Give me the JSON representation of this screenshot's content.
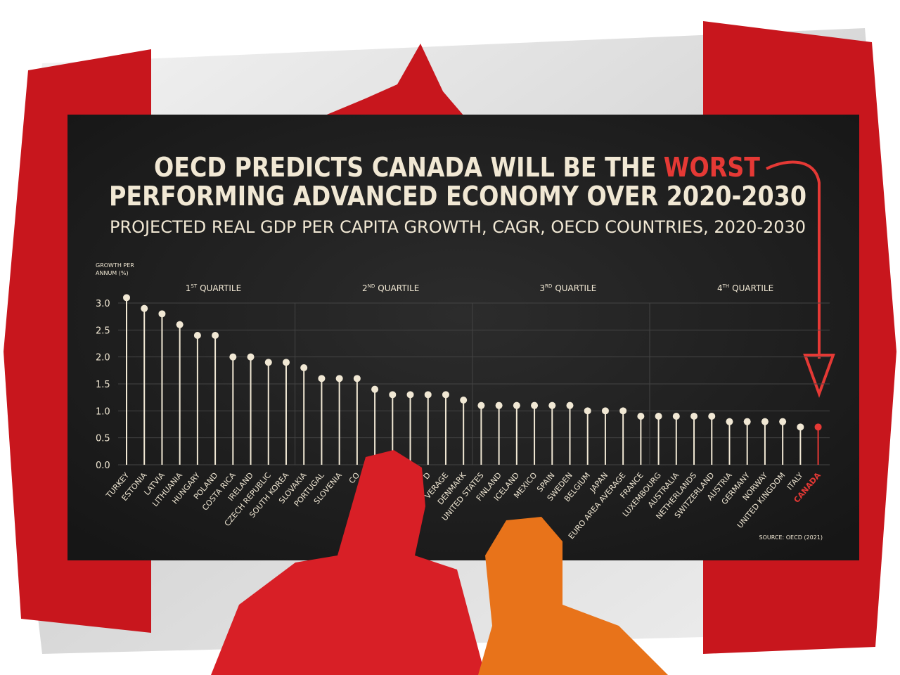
{
  "chart_data": {
    "type": "lollipop",
    "title": [
      "OECD PREDICTS CANADA WILL BE THE",
      "WORST",
      "PERFORMING ADVANCED ECONOMY OVER 2020-2030"
    ],
    "subtitle": "PROJECTED REAL GDP PER CAPITA GROWTH, CAGR, OECD COUNTRIES, 2020-2030",
    "y_label": [
      "GROWTH PER",
      "ANNUM (%)"
    ],
    "source": "SOURCE: OECD (2021)",
    "quartiles": [
      {
        "number": "1",
        "suffix": "ST",
        "text": "QUARTILE"
      },
      {
        "number": "2",
        "suffix": "ND",
        "text": "QUARTILE"
      },
      {
        "number": "3",
        "suffix": "RD",
        "text": "QUARTILE"
      },
      {
        "number": "4",
        "suffix": "TH",
        "text": "QUARTILE"
      }
    ],
    "categories": [
      "TURKEY",
      "ESTONIA",
      "LATVIA",
      "LITHUANIA",
      "HUNGARY",
      "POLAND",
      "COSTA RICA",
      "IRELAND",
      "CZECH REPUBLIC",
      "SOUTH KOREA",
      "SLOVAKIA",
      "PORTUGAL",
      "SLOVENIA",
      "CO",
      null,
      null,
      null,
      "D",
      "VERAGE",
      "DENMARK",
      "UNITED STATES",
      "FINLAND",
      "ICELAND",
      "MEXICO",
      "SPAIN",
      "SWEDEN",
      "BELGIUM",
      "JAPAN",
      "EURO AREA AVERAGE",
      "FRANCE",
      "LUXEMBOURG",
      "AUSTRALIA",
      "NETHERLANDS",
      "SWITZERLAND",
      "AUSTRIA",
      "GERMANY",
      "NORWAY",
      "UNITED KINGDOM",
      "ITALY",
      "CANADA"
    ],
    "values": [
      3.1,
      2.9,
      2.8,
      2.6,
      2.4,
      2.4,
      2.0,
      2.0,
      1.9,
      1.9,
      1.8,
      1.6,
      1.6,
      1.6,
      1.4,
      1.3,
      1.3,
      1.3,
      1.3,
      1.2,
      1.1,
      1.1,
      1.1,
      1.1,
      1.1,
      1.1,
      1.0,
      1.0,
      1.0,
      0.9,
      0.9,
      0.9,
      0.9,
      0.9,
      0.8,
      0.8,
      0.8,
      0.8,
      0.7,
      0.7
    ],
    "colors": [
      "#f1e8d4",
      "#f1e8d4",
      "#f1e8d4",
      "#f1e8d4",
      "#f1e8d4",
      "#f1e8d4",
      "#f1e8d4",
      "#f1e8d4",
      "#f1e8d4",
      "#f1e8d4",
      "#f1e8d4",
      "#f1e8d4",
      "#f1e8d4",
      "#f1e8d4",
      "#f1e8d4",
      "#f1e8d4",
      "#f1e8d4",
      "#f1e8d4",
      "#f1e8d4",
      "#f1e8d4",
      "#f1e8d4",
      "#f1e8d4",
      "#f1e8d4",
      "#f1e8d4",
      "#f1e8d4",
      "#f1e8d4",
      "#f1e8d4",
      "#f1e8d4",
      "#f1e8d4",
      "#f1e8d4",
      "#f1e8d4",
      "#f1e8d4",
      "#f1e8d4",
      "#f1e8d4",
      "#f1e8d4",
      "#f1e8d4",
      "#f1e8d4",
      "#f1e8d4",
      "#f1e8d4",
      "#e53935"
    ],
    "ylim": [
      0,
      3.0
    ],
    "yticks": [
      {
        "value": 0,
        "label": "0.0"
      },
      0.5,
      {
        "value": 1,
        "label": "1.0"
      },
      1.5,
      {
        "value": 2,
        "label": "2.0"
      },
      2.5,
      {
        "value": 3,
        "label": "3.0"
      }
    ],
    "grid": true
  }
}
